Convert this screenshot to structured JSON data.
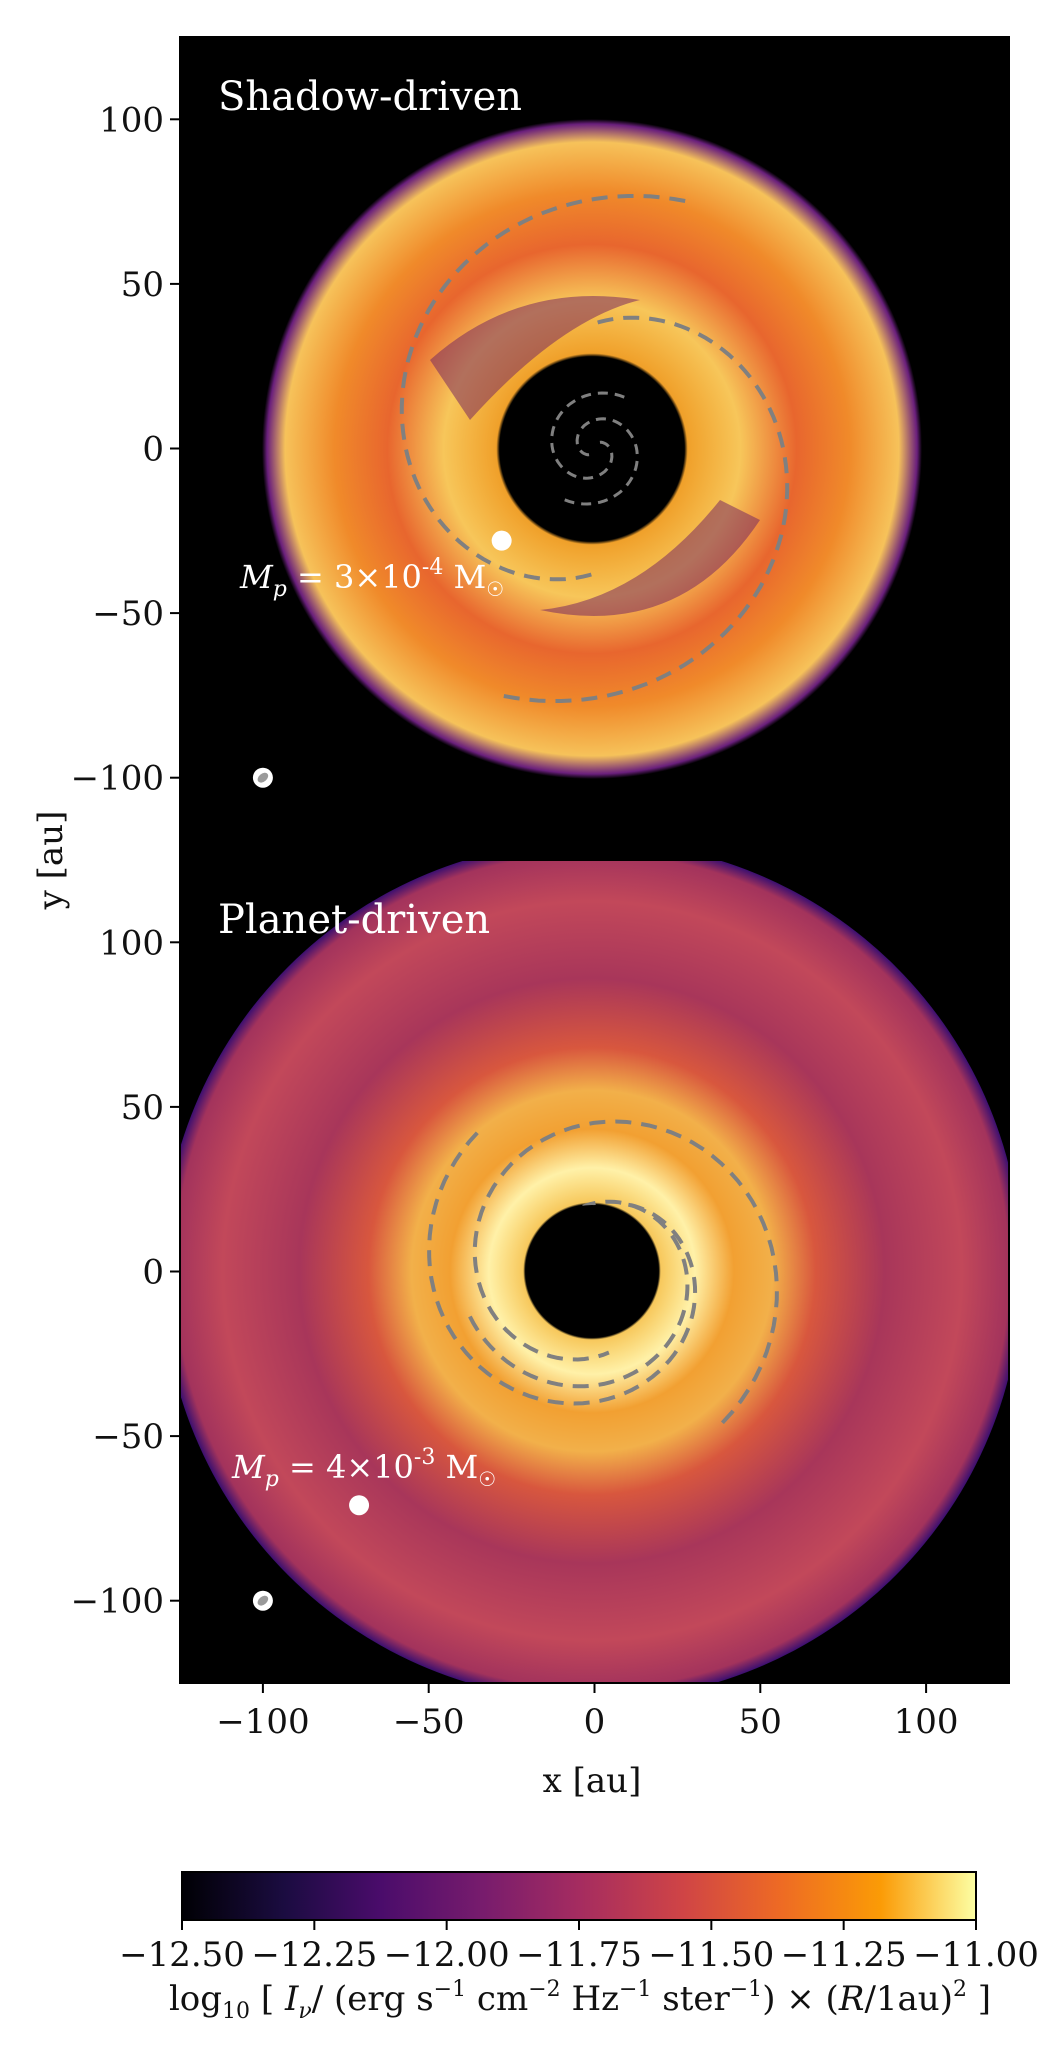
{
  "chart_data": {
    "type": "heatmap",
    "x_label": "x [au]",
    "y_label": "y [au]",
    "xlim": [
      -125,
      125
    ],
    "ylim": [
      -125,
      125
    ],
    "x_ticks": [
      -100,
      -50,
      0,
      50,
      100
    ],
    "y_ticks": [
      100,
      50,
      0,
      -50,
      -100
    ],
    "x_tick_labels": [
      "−100",
      "−50",
      "0",
      "50",
      "100"
    ],
    "y_tick_labels": [
      "100",
      "50",
      "0",
      "−50",
      "−100"
    ],
    "panels": [
      {
        "title": "Shadow-driven",
        "planet": {
          "x": -28,
          "y": -28
        },
        "planet_label_mass": "3×10",
        "planet_label_exp": "-4",
        "beam": {
          "x": -100,
          "y": -100
        },
        "spiral_arms": [
          {
            "name": "outer-arm-1",
            "r_start": 80,
            "r_end": 38,
            "phase": 70
          },
          {
            "name": "outer-arm-2",
            "r_start": 80,
            "r_end": 38,
            "phase": 250
          }
        ]
      },
      {
        "title": "Planet-driven",
        "planet": {
          "x": -71,
          "y": -71
        },
        "planet_label_mass": "4×10",
        "planet_label_exp": "-3",
        "beam": {
          "x": -100,
          "y": -100
        },
        "spiral_arms": []
      }
    ],
    "colorbar": {
      "cmap": "inferno",
      "min": -12.5,
      "max": -11.0,
      "ticks": [
        -12.5,
        -12.25,
        -12.0,
        -11.75,
        -11.5,
        -11.25,
        -11.0
      ],
      "tick_labels": [
        "−12.50",
        "−12.25",
        "−12.00",
        "−11.75",
        "−11.50",
        "−11.25",
        "−11.00"
      ]
    }
  },
  "colors": {
    "background": "#000000",
    "spiral": "#808080",
    "planet": "#ffffff"
  }
}
